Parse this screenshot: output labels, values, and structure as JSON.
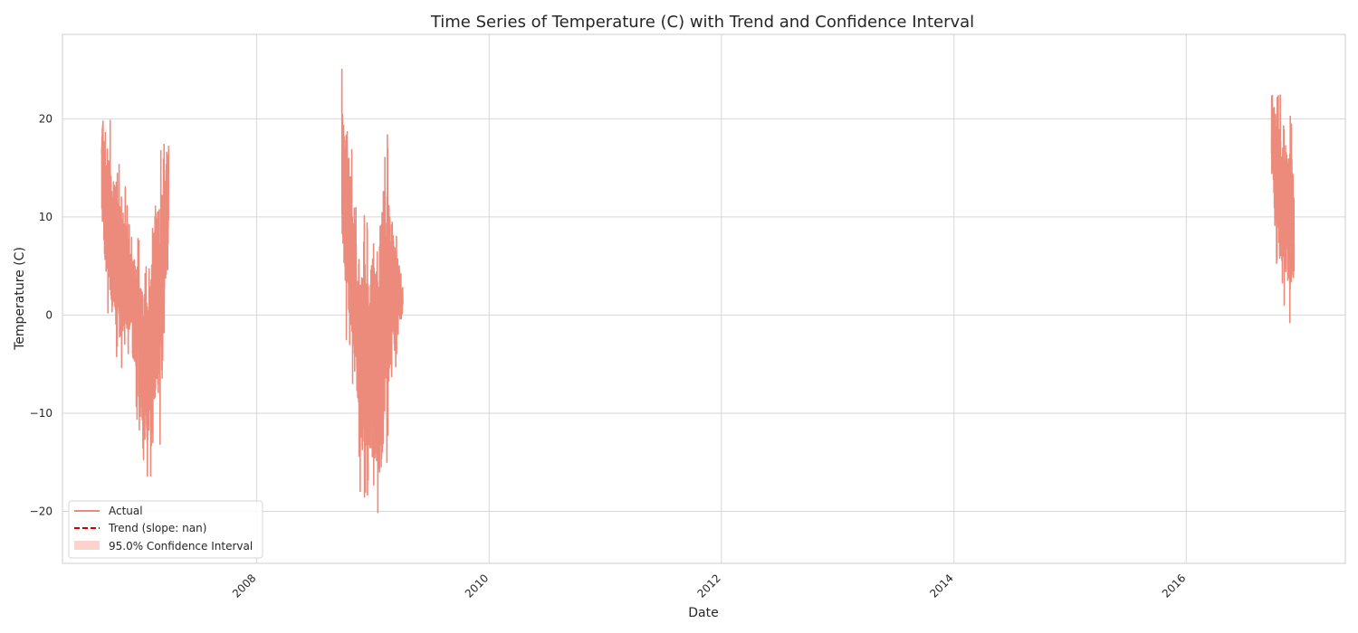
{
  "chart_data": {
    "type": "line",
    "title": "Time Series of Temperature (C) with Trend and Confidence Interval",
    "xlabel": "Date",
    "ylabel": "Temperature (C)",
    "xlim": [
      "2006-05-01",
      "2017-05-15"
    ],
    "ylim": [
      -25.3,
      28.6
    ],
    "x_ticks": [
      "2008",
      "2010",
      "2012",
      "2014",
      "2016"
    ],
    "y_ticks": [
      -20,
      -10,
      0,
      10,
      20
    ],
    "y_tick_labels": [
      "−20",
      "−10",
      "0",
      "10",
      "20"
    ],
    "grid": true,
    "legend": {
      "placement": "lower-left",
      "entries": [
        "Actual",
        "Trend (slope: nan)",
        "95.0% Confidence Interval"
      ]
    },
    "colors": {
      "actual": "#ec8b7c",
      "trend": "#cc0000",
      "ci": "#f9d3cc",
      "grid": "#d6d6d6",
      "spine": "#cccccc"
    },
    "series": [
      {
        "name": "Actual",
        "segments": [
          {
            "start": "2006-09-01",
            "end": "2007-03-31",
            "envelope": [
              [
                "2006-09-01",
                5,
                25
              ],
              [
                "2006-09-20",
                -2,
                22
              ],
              [
                "2006-10-15",
                -4,
                17
              ],
              [
                "2006-11-10",
                -8,
                15
              ],
              [
                "2006-12-05",
                -3,
                9
              ],
              [
                "2006-12-30",
                -15,
                9
              ],
              [
                "2007-01-25",
                -18,
                6
              ],
              [
                "2007-02-15",
                -17,
                17
              ],
              [
                "2007-03-05",
                -13,
                17
              ],
              [
                "2007-03-31",
                5,
                21
              ]
            ]
          },
          {
            "start": "2008-09-25",
            "end": "2009-04-05",
            "envelope": [
              [
                "2008-09-25",
                2,
                26
              ],
              [
                "2008-10-15",
                -5,
                23
              ],
              [
                "2008-11-05",
                -8,
                12
              ],
              [
                "2008-11-25",
                -20,
                11
              ],
              [
                "2008-12-15",
                -21,
                10
              ],
              [
                "2009-01-05",
                -22,
                13
              ],
              [
                "2009-01-25",
                -23,
                9
              ],
              [
                "2009-02-15",
                -15,
                20
              ],
              [
                "2009-03-05",
                -10,
                13
              ],
              [
                "2009-03-20",
                -3,
                8
              ],
              [
                "2009-04-05",
                -2,
                5
              ]
            ]
          },
          {
            "start": "2016-09-25",
            "end": "2016-12-05",
            "envelope": [
              [
                "2016-09-25",
                14,
                25
              ],
              [
                "2016-10-10",
                3,
                25
              ],
              [
                "2016-10-25",
                1,
                22
              ],
              [
                "2016-11-10",
                -1,
                21
              ],
              [
                "2016-11-25",
                -2,
                22
              ],
              [
                "2016-12-05",
                0,
                17
              ]
            ]
          }
        ]
      },
      {
        "name": "Trend (slope: nan)",
        "values": []
      },
      {
        "name": "95.0% Confidence Interval",
        "values": []
      }
    ]
  }
}
